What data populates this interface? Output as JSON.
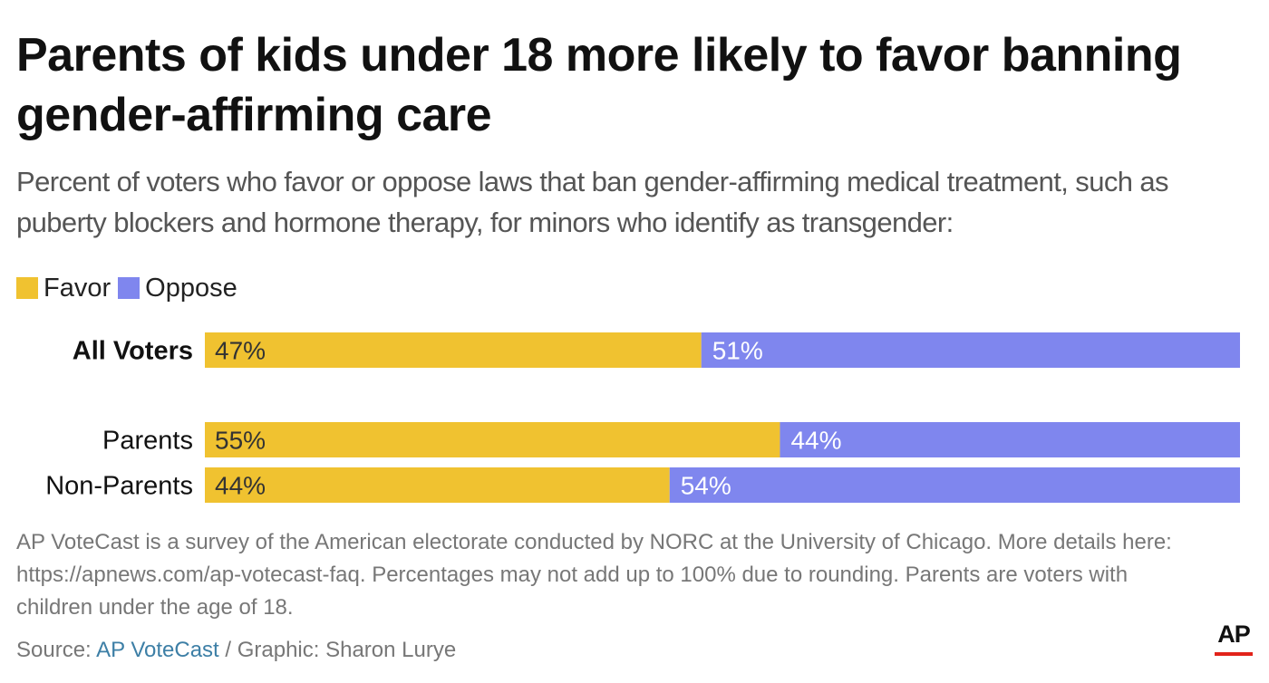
{
  "colors": {
    "favor": "#f0c230",
    "oppose": "#7f86ee",
    "source_link": "#3d7fa6",
    "logo_accent": "#e2231a"
  },
  "legend": {
    "favor_label": "Favor",
    "oppose_label": "Oppose"
  },
  "footnote": "AP VoteCast is a survey of the American electorate conducted by NORC at the University of Chicago. More details here: https://apnews.com/ap-votecast-faq. Percentages may not add up to 100% due to rounding. Parents are voters with children under the age of 18.",
  "source": {
    "prefix": "Source: ",
    "link": "AP VoteCast",
    "suffix": " / Graphic: Sharon Lurye"
  },
  "logo": {
    "text": "AP"
  },
  "chart_data": {
    "type": "bar",
    "orientation": "horizontal-stacked",
    "title": "Parents of kids under 18 more likely to favor banning gender-affirming care",
    "subtitle": "Percent of voters who favor or oppose laws that ban gender-affirming medical treatment, such as puberty blockers and hormone therapy, for minors who identify as transgender:",
    "categories": [
      "All Voters",
      "Parents",
      "Non-Parents"
    ],
    "series": [
      {
        "name": "Favor",
        "values": [
          47,
          55,
          44
        ],
        "labels": [
          "47%",
          "55%",
          "44%"
        ]
      },
      {
        "name": "Oppose",
        "values": [
          51,
          44,
          54
        ],
        "labels": [
          "51%",
          "44%",
          "54%"
        ]
      }
    ],
    "legend_position": "top-left",
    "grid": false
  }
}
